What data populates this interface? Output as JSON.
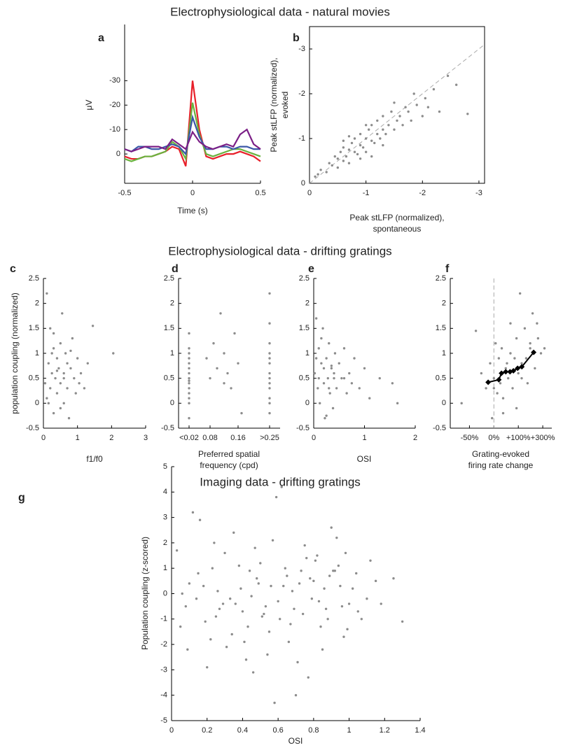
{
  "sections": [
    "Electrophysiological data - natural movies",
    "Electrophysiological data - drifting gratings",
    "Imaging data - drifting gratings"
  ],
  "chart_data": [
    {
      "type": "line",
      "label": "a",
      "ylabel": [
        "μV"
      ],
      "xlabel": [
        "Time (s)"
      ],
      "x": [
        -0.5,
        -0.45,
        -0.4,
        -0.35,
        -0.3,
        -0.25,
        -0.2,
        -0.15,
        -0.1,
        -0.05,
        0,
        0.05,
        0.1,
        0.15,
        0.2,
        0.25,
        0.3,
        0.35,
        0.4,
        0.45,
        0.5
      ],
      "series": [
        {
          "color": "#e8202a",
          "values": [
            1,
            2,
            2,
            1,
            1,
            0,
            -1,
            -3,
            -2,
            5,
            -30,
            -10,
            1,
            2,
            1,
            0,
            0,
            -1,
            0,
            1,
            3
          ]
        },
        {
          "color": "#6ab23e",
          "values": [
            2,
            3,
            2,
            1,
            1,
            0,
            -1,
            -5,
            -3,
            2,
            -21,
            -8,
            0,
            1,
            0,
            -1,
            -2,
            -2,
            -1,
            0,
            1
          ]
        },
        {
          "color": "#3a57a7",
          "values": [
            -2,
            -1,
            -3,
            -3,
            -2,
            -2,
            -3,
            -4,
            -3,
            0,
            -15,
            -7,
            -2,
            -2,
            -3,
            -3,
            -2,
            -3,
            -3,
            -2,
            -2
          ]
        },
        {
          "color": "#7b1f86",
          "values": [
            -2,
            -1,
            -2,
            -3,
            -3,
            -3,
            -2,
            -6,
            -4,
            -2,
            -9,
            -5,
            -3,
            -2,
            -3,
            -4,
            -3,
            -8,
            -10,
            -4,
            -2
          ]
        }
      ],
      "xlim": [
        -0.5,
        0.5
      ],
      "xticks": [
        -0.5,
        0,
        0.5
      ],
      "ylim": [
        12,
        -53
      ],
      "yticks": [
        -30,
        -20,
        -10,
        0
      ],
      "frame": false
    },
    {
      "type": "scatter",
      "label": "b",
      "ylabel": [
        "Peak stLFP (normalized),",
        "evoked"
      ],
      "xlabel": [
        "Peak stLFP (normalized),",
        "spontaneous"
      ],
      "series": [
        {
          "color": "#8c8c8c",
          "x": [
            -0.1,
            -0.15,
            -0.2,
            -0.3,
            -0.35,
            -0.4,
            -0.45,
            -0.5,
            -0.5,
            -0.55,
            -0.6,
            -0.6,
            -0.65,
            -0.7,
            -0.7,
            -0.75,
            -0.8,
            -0.8,
            -0.85,
            -0.9,
            -0.9,
            -0.95,
            -1.0,
            -1.0,
            -1.05,
            -1.1,
            -1.1,
            -1.15,
            -1.2,
            -1.2,
            -1.25,
            -1.3,
            -1.3,
            -1.35,
            -1.4,
            -1.45,
            -1.5,
            -1.5,
            -1.55,
            -1.6,
            -1.65,
            -1.7,
            -1.75,
            -1.8,
            -1.85,
            -1.9,
            -2.0,
            -2.05,
            -2.1,
            -2.2,
            -2.3,
            -2.45,
            -2.6,
            -2.8,
            -0.9,
            -1.1,
            -0.7,
            -1.3,
            -1.0,
            -0.6
          ],
          "values": [
            -0.15,
            -0.2,
            -0.3,
            -0.25,
            -0.45,
            -0.4,
            -0.6,
            -0.55,
            -0.35,
            -0.7,
            -0.5,
            -0.8,
            -0.6,
            -0.75,
            -0.45,
            -0.9,
            -0.7,
            -1.0,
            -0.65,
            -0.85,
            -1.1,
            -0.8,
            -1.0,
            -0.7,
            -1.2,
            -0.95,
            -1.3,
            -0.9,
            -1.1,
            -1.4,
            -1.0,
            -1.2,
            -1.5,
            -1.1,
            -1.3,
            -1.6,
            -1.2,
            -1.8,
            -1.4,
            -1.5,
            -1.3,
            -1.7,
            -1.6,
            -1.4,
            -2.0,
            -1.75,
            -1.5,
            -1.9,
            -1.7,
            -2.1,
            -1.6,
            -2.4,
            -2.2,
            -1.55,
            -0.55,
            -0.6,
            -1.05,
            -0.85,
            -1.3,
            -0.95
          ]
        }
      ],
      "xlim": [
        0,
        -3.1
      ],
      "xticks": [
        0,
        -1,
        -2,
        -3
      ],
      "ylim": [
        0,
        -3.5
      ],
      "yticks": [
        0,
        -1,
        -2,
        -3
      ],
      "frame": true,
      "reference_line": "identity"
    },
    {
      "type": "scatter",
      "label": "c",
      "ylabel": [
        "population coupling (normalized)"
      ],
      "xlabel": [
        "f1/f0"
      ],
      "series": [
        {
          "color": "#8c8c8c",
          "x": [
            0.05,
            0.1,
            0.1,
            0.15,
            0.2,
            0.2,
            0.25,
            0.3,
            0.3,
            0.35,
            0.4,
            0.4,
            0.45,
            0.5,
            0.5,
            0.55,
            0.6,
            0.6,
            0.65,
            0.7,
            0.7,
            0.75,
            0.8,
            0.85,
            0.9,
            0.95,
            1.0,
            1.05,
            1.1,
            1.2,
            1.3,
            1.45,
            2.05,
            0.15,
            0.3,
            0.5,
            0.25,
            0.6,
            0.4,
            0.8
          ],
          "values": [
            0.4,
            2.2,
            0.1,
            0.8,
            1.5,
            0.3,
            0.6,
            1.1,
            -0.2,
            0.5,
            0.9,
            0.2,
            0.7,
            1.2,
            0.4,
            1.8,
            0.6,
            0.0,
            1.0,
            0.3,
            0.8,
            -0.3,
            0.7,
            1.3,
            0.5,
            0.2,
            0.9,
            0.4,
            0.6,
            0.3,
            0.8,
            1.55,
            1.0,
            0.0,
            1.4,
            -0.1,
            1.0,
            0.5,
            0.65,
            1.05
          ]
        }
      ],
      "xlim": [
        0,
        3
      ],
      "xticks": [
        0,
        1,
        2,
        3
      ],
      "ylim": [
        -0.5,
        2.5
      ],
      "yticks": [
        -0.5,
        0,
        0.5,
        1,
        1.5,
        2,
        2.5
      ],
      "frame": false
    },
    {
      "type": "scatter",
      "label": "d",
      "xlabel": [
        "Preferred spatial",
        "frequency (cpd)"
      ],
      "series": [
        {
          "color": "#8c8c8c",
          "x": [
            0.02,
            0.02,
            0.02,
            0.02,
            0.02,
            0.02,
            0.02,
            0.02,
            0.02,
            0.02,
            0.02,
            0.02,
            0.02,
            0.02,
            0.02,
            0.07,
            0.08,
            0.09,
            0.1,
            0.11,
            0.12,
            0.12,
            0.13,
            0.14,
            0.15,
            0.16,
            0.17,
            0.25,
            0.25,
            0.25,
            0.25,
            0.25,
            0.25,
            0.25,
            0.25,
            0.25,
            0.25,
            0.25,
            0.25,
            0.25
          ],
          "values": [
            1.4,
            1.1,
            1.0,
            0.9,
            0.8,
            0.7,
            0.6,
            0.5,
            0.45,
            0.4,
            0.3,
            0.2,
            0.1,
            0.0,
            -0.3,
            0.9,
            0.5,
            1.2,
            0.7,
            1.8,
            0.4,
            1.0,
            0.6,
            0.3,
            1.4,
            0.8,
            -0.2,
            2.2,
            1.6,
            1.2,
            1.0,
            0.9,
            0.8,
            0.6,
            0.5,
            0.4,
            0.3,
            0.1,
            0.0,
            -0.2
          ]
        }
      ],
      "xlim": [
        -0.01,
        0.28
      ],
      "xticks": [
        {
          "value": 0.02,
          "label": "<0.02"
        },
        0.08,
        0.16,
        {
          "value": 0.25,
          "label": ">0.25"
        }
      ],
      "ylim": [
        -0.5,
        2.5
      ],
      "yticks": [
        -0.5,
        0,
        0.5,
        1,
        1.5,
        2,
        2.5
      ],
      "frame": false
    },
    {
      "type": "scatter",
      "label": "e",
      "xlabel": [
        "OSI"
      ],
      "series": [
        {
          "color": "#8c8c8c",
          "x": [
            0.02,
            0.05,
            0.08,
            0.1,
            0.12,
            0.15,
            0.18,
            0.2,
            0.22,
            0.25,
            0.28,
            0.3,
            0.32,
            0.35,
            0.38,
            0.4,
            0.42,
            0.45,
            0.5,
            0.55,
            0.6,
            0.65,
            0.7,
            0.75,
            0.8,
            0.9,
            1.0,
            1.1,
            1.3,
            1.55,
            1.65,
            0.1,
            0.2,
            0.3,
            0.15,
            0.25,
            0.4,
            0.05,
            0.35,
            0.6
          ],
          "values": [
            0.6,
            1.7,
            0.3,
            1.1,
            0.0,
            0.8,
            1.5,
            0.4,
            -0.3,
            0.9,
            0.5,
            1.2,
            0.2,
            0.7,
            -0.1,
            0.6,
            1.0,
            0.3,
            0.8,
            0.5,
            1.1,
            0.2,
            0.6,
            0.4,
            0.9,
            0.3,
            0.7,
            0.1,
            0.5,
            0.4,
            0.0,
            0.5,
            0.7,
            0.3,
            1.3,
            -0.25,
            0.5,
            0.9,
            0.75,
            0.5
          ]
        }
      ],
      "xlim": [
        0,
        2
      ],
      "xticks": [
        0,
        1,
        2
      ],
      "ylim": [
        -0.5,
        2.5
      ],
      "yticks": [
        -0.5,
        0,
        0.5,
        1,
        1.5,
        2,
        2.5
      ],
      "frame": false
    },
    {
      "type": "scatter",
      "label": "f",
      "xlabel": [
        "Grating-evoked",
        "firing rate change"
      ],
      "xscale": "log-ratio",
      "series": [
        {
          "color": "#8c8c8c",
          "x": [
            -60,
            -40,
            -30,
            -20,
            -10,
            -5,
            0,
            5,
            10,
            15,
            20,
            25,
            30,
            40,
            50,
            60,
            70,
            80,
            90,
            100,
            110,
            120,
            140,
            160,
            180,
            200,
            220,
            250,
            280,
            320,
            -15,
            30,
            60,
            120,
            180,
            0,
            45,
            90,
            150,
            240
          ],
          "values": [
            0.0,
            1.45,
            0.6,
            0.3,
            0.8,
            -0.3,
            0.5,
            1.2,
            0.2,
            0.9,
            0.4,
            1.1,
            -0.2,
            0.7,
            0.5,
            1.6,
            0.3,
            0.9,
            1.3,
            0.6,
            2.2,
            0.8,
            1.5,
            0.4,
            1.1,
            1.8,
            0.7,
            1.3,
            1.0,
            1.1,
            0.4,
            0.1,
            1.0,
            0.5,
            1.2,
            0.3,
            0.8,
            -0.1,
            0.9,
            1.6
          ]
        },
        {
          "color": "#000000",
          "line": true,
          "marker": "diamond",
          "x": [
            -15,
            15,
            24,
            40,
            58,
            74,
            96,
            121,
            209
          ],
          "values": [
            0.42,
            0.47,
            0.6,
            0.63,
            0.63,
            0.65,
            0.7,
            0.73,
            1.02
          ]
        }
      ],
      "xlim": [
        -71,
        417
      ],
      "xticks": [
        {
          "value": -50,
          "label": "-50%"
        },
        {
          "value": 0,
          "label": "0%"
        },
        {
          "value": 100,
          "label": "+100%"
        },
        {
          "value": 300,
          "label": "+300%"
        }
      ],
      "ylim": [
        -0.5,
        2.5
      ],
      "yticks": [
        -0.5,
        0,
        0.5,
        1,
        1.5,
        2,
        2.5
      ],
      "frame": false,
      "vline": 0
    },
    {
      "type": "scatter",
      "label": "g",
      "ylabel": [
        "Population coupling (z-scored)"
      ],
      "xlabel": [
        "OSI"
      ],
      "series": [
        {
          "color": "#8c8c8c",
          "x": [
            0.03,
            0.08,
            0.12,
            0.18,
            0.22,
            0.28,
            0.33,
            0.38,
            0.42,
            0.48,
            0.52,
            0.57,
            0.62,
            0.67,
            0.72,
            0.77,
            0.82,
            0.87,
            0.92,
            0.97,
            1.02,
            1.07,
            1.12,
            1.18,
            1.25,
            1.3,
            0.05,
            0.15,
            0.25,
            0.35,
            0.45,
            0.55,
            0.65,
            0.75,
            0.85,
            0.95,
            0.1,
            0.2,
            0.3,
            0.4,
            0.5,
            0.6,
            0.7,
            0.8,
            0.9,
            1.0,
            0.14,
            0.24,
            0.34,
            0.44,
            0.54,
            0.64,
            0.74,
            0.84,
            0.94,
            1.04,
            0.16,
            0.26,
            0.36,
            0.46,
            0.56,
            0.66,
            0.76,
            0.86,
            0.96,
            0.06,
            0.27,
            0.47,
            0.68,
            0.88,
            0.58,
            0.78,
            0.98,
            0.19,
            0.39,
            0.59,
            0.79,
            0.99,
            0.31,
            0.51,
            0.71,
            0.91,
            1.1,
            1.15,
            0.23,
            0.43,
            0.63,
            0.83,
            0.93,
            1.05,
            0.09,
            0.29,
            0.49,
            0.69,
            0.89,
            0.53,
            0.73,
            0.61,
            0.81,
            0.41
          ],
          "values": [
            1.7,
            -0.5,
            3.2,
            0.3,
            -1.8,
            4.4,
            -0.2,
            1.1,
            -2.6,
            0.6,
            -0.8,
            2.1,
            4.2,
            -1.2,
            0.4,
            -3.3,
            1.5,
            -0.6,
            0.9,
            -1.7,
            0.2,
            -1.0,
            1.3,
            -0.4,
            0.6,
            -1.1,
            -1.3,
            0.8,
            -0.9,
            2.4,
            -0.1,
            -1.5,
            0.7,
            1.9,
            -2.2,
            0.3,
            0.4,
            -2.9,
            1.6,
            -0.7,
            1.2,
            -0.3,
            -4.0,
            0.5,
            2.6,
            -0.4,
            -0.2,
            2.0,
            -1.6,
            0.9,
            -2.4,
            1.0,
            -0.8,
            -1.3,
            1.1,
            0.8,
            2.9,
            0.1,
            -0.4,
            -3.1,
            0.3,
            -1.9,
            1.4,
            0.2,
            -0.5,
            0.0,
            -0.6,
            1.8,
            0.1,
            -1.0,
            -4.3,
            0.6,
            1.6,
            -1.1,
            0.2,
            3.8,
            -0.2,
            -1.4,
            -2.1,
            -0.9,
            -2.7,
            0.9,
            -0.2,
            0.5,
            1.0,
            -1.3,
            0.3,
            -0.3,
            2.2,
            -0.7,
            -2.2,
            -0.4,
            0.4,
            -0.6,
            0.7,
            -0.5,
            0.9,
            -1.0,
            1.3,
            -1.9
          ]
        }
      ],
      "xlim": [
        0,
        1.4
      ],
      "xticks": [
        0,
        0.2,
        0.4,
        0.6,
        0.8,
        1,
        1.2,
        1.4
      ],
      "ylim": [
        -5,
        5
      ],
      "yticks": [
        -5,
        -4,
        -3,
        -2,
        -1,
        0,
        1,
        2,
        3,
        4,
        5
      ],
      "frame": false
    }
  ]
}
